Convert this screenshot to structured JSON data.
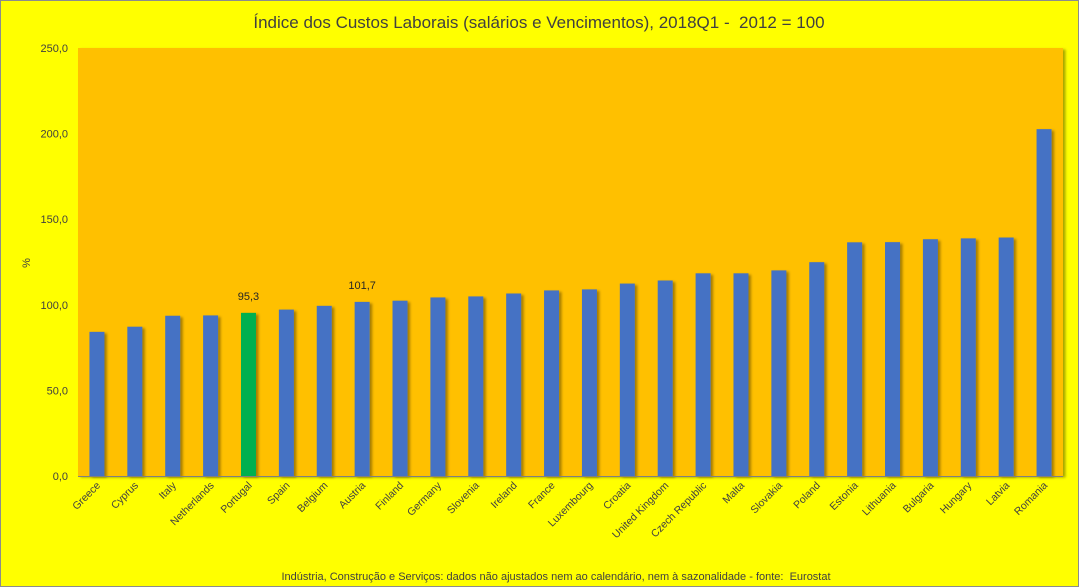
{
  "chart_data": {
    "type": "bar",
    "title": "Índice dos Custos Laborais (salários e Vencimentos), 2018Q1 -  2012 = 100",
    "xlabel": "",
    "ylabel": "%",
    "ylim": [
      0,
      250
    ],
    "yticks": [
      {
        "value": 0,
        "label": "0,0"
      },
      {
        "value": 50,
        "label": "50,0"
      },
      {
        "value": 100,
        "label": "100,0"
      },
      {
        "value": 150,
        "label": "150,0"
      },
      {
        "value": 200,
        "label": "200,0"
      },
      {
        "value": 250,
        "label": "250,0"
      }
    ],
    "categories": [
      "Greece",
      "Cyprus",
      "Italy",
      "Netherlands",
      "Portugal",
      "Spain",
      "Belgium",
      "Austria",
      "Finland",
      "Germany",
      "Slovenia",
      "Ireland",
      "France",
      "Luxembourg",
      "Croatia",
      "United Kingdom",
      "Czech Republic",
      "Malta",
      "Slovakia",
      "Poland",
      "Estonia",
      "Lithuania",
      "Bulgaria",
      "Hungary",
      "Latvia",
      "Romania"
    ],
    "values": [
      84.2,
      87.2,
      93.6,
      93.8,
      95.3,
      97.2,
      99.4,
      101.7,
      102.4,
      104.3,
      104.9,
      106.6,
      108.4,
      109.0,
      112.4,
      114.2,
      118.4,
      118.4,
      120.1,
      124.9,
      136.5,
      136.6,
      138.3,
      138.8,
      139.3,
      202.6
    ],
    "highlight": "Portugal",
    "data_labels": [
      {
        "category": "Portugal",
        "label": "95,3"
      },
      {
        "category": "Austria",
        "label": "101,7"
      }
    ],
    "grid": false,
    "legend": "none",
    "colors": {
      "background": "#FFFF00",
      "plot": "#FFC000",
      "bar": "#4472C4",
      "highlight_bar": "#00B050",
      "axis": "#808080"
    }
  },
  "footer": "Indústria, Construção e Serviços: dados não ajustados nem ao calendário, nem à sazonalidade - fonte:  Eurostat"
}
